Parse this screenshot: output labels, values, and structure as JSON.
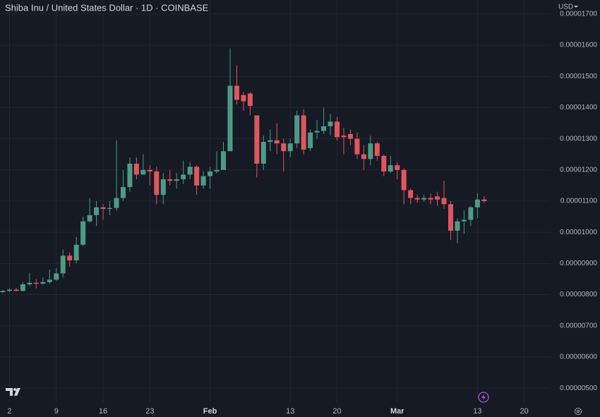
{
  "chart_data": {
    "type": "candlestick",
    "title": "Shiba Inu / United States Dollar · 1D · COINBASE",
    "currency": "USD",
    "categories": [
      null,
      "2",
      null,
      null,
      null,
      null,
      null,
      null,
      "9",
      null,
      null,
      null,
      null,
      null,
      null,
      "16",
      null,
      null,
      null,
      null,
      null,
      null,
      "23",
      null,
      null,
      null,
      null,
      null,
      null,
      null,
      null,
      "Feb",
      null,
      null,
      null,
      null,
      null,
      null,
      null,
      null,
      null,
      null,
      null,
      "13",
      null,
      null,
      null,
      null,
      null,
      null,
      "20",
      null,
      null,
      null,
      null,
      null,
      null,
      null,
      null,
      "Mar",
      null,
      null,
      null,
      null,
      null,
      null,
      null,
      null,
      null,
      null,
      null,
      "13",
      null,
      null,
      null,
      null,
      null,
      null,
      "20",
      null,
      null,
      null
    ],
    "open": [
      8.08e-06,
      8.12e-06,
      8.16e-06,
      8.12e-06,
      8.33e-06,
      8.38e-06,
      8.35e-06,
      8.4e-06,
      8.48e-06,
      8.68e-06,
      9.25e-06,
      9.1e-06,
      9.6e-06,
      1.035e-05,
      1.055e-05,
      1.08e-05,
      1.075e-05,
      1.078e-05,
      1.11e-05,
      1.145e-05,
      1.22e-05,
      1.185e-05,
      1.2e-05,
      1.195e-05,
      1.12e-05,
      1.17e-05,
      1.165e-05,
      1.17e-05,
      1.185e-05,
      1.21e-05,
      1.15e-05,
      1.18e-05,
      1.195e-05,
      1.2e-05,
      1.26e-05,
      1.47e-05,
      1.44e-05,
      1.445e-05,
      1.375e-05,
      1.22e-05,
      1.29e-05,
      1.295e-05,
      1.285e-05,
      1.26e-05,
      1.285e-05,
      1.375e-05,
      1.27e-05,
      1.32e-05,
      1.325e-05,
      1.34e-05,
      1.355e-05,
      1.31e-05,
      1.315e-05,
      1.3e-05,
      1.25e-05,
      1.235e-05,
      1.285e-05,
      1.245e-05,
      1.195e-05,
      1.215e-05,
      1.2e-05,
      1.135e-05,
      1.11e-05,
      1.105e-05,
      1.11e-05,
      1.115e-05,
      1.11e-05,
      1.09e-05,
      1.005e-05,
      1.035e-05,
      1.04e-05,
      1.08e-05,
      1.105e-05,
      null,
      null,
      null,
      null,
      null,
      null,
      null,
      null,
      null
    ],
    "high": [
      8.15e-06,
      8.2e-06,
      8.22e-06,
      8.4e-06,
      8.7e-06,
      8.5e-06,
      8.55e-06,
      8.8e-06,
      8.85e-06,
      9.45e-06,
      9.35e-06,
      9.85e-06,
      1.05e-05,
      1.11e-05,
      1.1e-05,
      1.09e-05,
      1.1e-05,
      1.295e-05,
      1.2e-05,
      1.24e-05,
      1.24e-05,
      1.25e-05,
      1.215e-05,
      1.21e-05,
      1.19e-05,
      1.2e-05,
      1.19e-05,
      1.23e-05,
      1.225e-05,
      1.215e-05,
      1.195e-05,
      1.21e-05,
      1.26e-05,
      1.29e-05,
      1.59e-05,
      1.535e-05,
      1.45e-05,
      1.45e-05,
      1.375e-05,
      1.31e-05,
      1.33e-05,
      1.35e-05,
      1.3e-05,
      1.3e-05,
      1.39e-05,
      1.395e-05,
      1.33e-05,
      1.36e-05,
      1.4e-05,
      1.38e-05,
      1.37e-05,
      1.335e-05,
      1.33e-05,
      1.32e-05,
      1.28e-05,
      1.31e-05,
      1.29e-05,
      1.25e-05,
      1.245e-05,
      1.225e-05,
      1.205e-05,
      1.14e-05,
      1.12e-05,
      1.12e-05,
      1.125e-05,
      1.13e-05,
      1.165e-05,
      1.1e-05,
      1.045e-05,
      1.07e-05,
      1.085e-05,
      1.125e-05,
      1.115e-05,
      null,
      null,
      null,
      null,
      null,
      null,
      null,
      null,
      null
    ],
    "low": [
      8.05e-06,
      8.08e-06,
      8.1e-06,
      8.1e-06,
      8.28e-06,
      8.2e-06,
      8.32e-06,
      8.35e-06,
      8.45e-06,
      8.55e-06,
      8.9e-06,
      9e-06,
      9.55e-06,
      1.03e-05,
      1.02e-05,
      1.04e-05,
      1.055e-05,
      1.07e-05,
      1.1e-05,
      1.13e-05,
      1.17e-05,
      1.185e-05,
      1.15e-05,
      1.09e-05,
      1.09e-05,
      1.15e-05,
      1.14e-05,
      1.155e-05,
      1.17e-05,
      1.12e-05,
      1.14e-05,
      1.14e-05,
      1.19e-05,
      1.2e-05,
      1.26e-05,
      1.41e-05,
      1.39e-05,
      1.375e-05,
      1.175e-05,
      1.2e-05,
      1.26e-05,
      1.25e-05,
      1.195e-05,
      1.24e-05,
      1.27e-05,
      1.25e-05,
      1.26e-05,
      1.3e-05,
      1.315e-05,
      1.31e-05,
      1.295e-05,
      1.25e-05,
      1.28e-05,
      1.235e-05,
      1.2e-05,
      1.215e-05,
      1.23e-05,
      1.18e-05,
      1.19e-05,
      1.17e-05,
      1.09e-05,
      1.09e-05,
      1.095e-05,
      1.098e-05,
      1.09e-05,
      1.085e-05,
      1.075e-05,
      9.75e-06,
      9.65e-06,
      9.95e-06,
      1.02e-05,
      1.045e-05,
      1.095e-05,
      null,
      null,
      null,
      null,
      null,
      null,
      null,
      null,
      null
    ],
    "close": [
      8.12e-06,
      8.16e-06,
      8.12e-06,
      8.33e-06,
      8.38e-06,
      8.35e-06,
      8.4e-06,
      8.48e-06,
      8.68e-06,
      9.25e-06,
      9.1e-06,
      9.6e-06,
      1.035e-05,
      1.055e-05,
      1.08e-05,
      1.075e-05,
      1.078e-05,
      1.11e-05,
      1.145e-05,
      1.22e-05,
      1.185e-05,
      1.2e-05,
      1.195e-05,
      1.12e-05,
      1.17e-05,
      1.165e-05,
      1.17e-05,
      1.185e-05,
      1.21e-05,
      1.15e-05,
      1.18e-05,
      1.195e-05,
      1.2e-05,
      1.26e-05,
      1.47e-05,
      1.425e-05,
      1.42e-05,
      1.405e-05,
      1.22e-05,
      1.29e-05,
      1.295e-05,
      1.285e-05,
      1.26e-05,
      1.285e-05,
      1.375e-05,
      1.265e-05,
      1.32e-05,
      1.325e-05,
      1.34e-05,
      1.355e-05,
      1.305e-05,
      1.305e-05,
      1.3e-05,
      1.25e-05,
      1.235e-05,
      1.285e-05,
      1.245e-05,
      1.195e-05,
      1.215e-05,
      1.2e-05,
      1.135e-05,
      1.11e-05,
      1.105e-05,
      1.11e-05,
      1.105e-05,
      1.105e-05,
      1.09e-05,
      1.005e-05,
      1.035e-05,
      1.04e-05,
      1.08e-05,
      1.105e-05,
      1.1e-05,
      null,
      null,
      null,
      null,
      null,
      null,
      null,
      null,
      null
    ],
    "up_color": "#4e9a86",
    "down_color": "#e0565d",
    "ylim": [
      4.55e-06,
      1.745e-05
    ],
    "yticks": [
      {
        "value": 5e-06,
        "label": "0.00000500"
      },
      {
        "value": 6e-06,
        "label": "0.00000600"
      },
      {
        "value": 7e-06,
        "label": "0.00000700"
      },
      {
        "value": 8e-06,
        "label": "0.00000800"
      },
      {
        "value": 9e-06,
        "label": "0.00000900"
      },
      {
        "value": 1e-05,
        "label": "0.00001000"
      },
      {
        "value": 1.1e-05,
        "label": "0.00001100"
      },
      {
        "value": 1.2e-05,
        "label": "0.00001200"
      },
      {
        "value": 1.3e-05,
        "label": "0.00001300"
      },
      {
        "value": 1.4e-05,
        "label": "0.00001400"
      },
      {
        "value": 1.5e-05,
        "label": "0.00001500"
      },
      {
        "value": 1.6e-05,
        "label": "0.00001600"
      },
      {
        "value": 1.7e-05,
        "label": "0.00001700"
      }
    ],
    "grid": true
  }
}
